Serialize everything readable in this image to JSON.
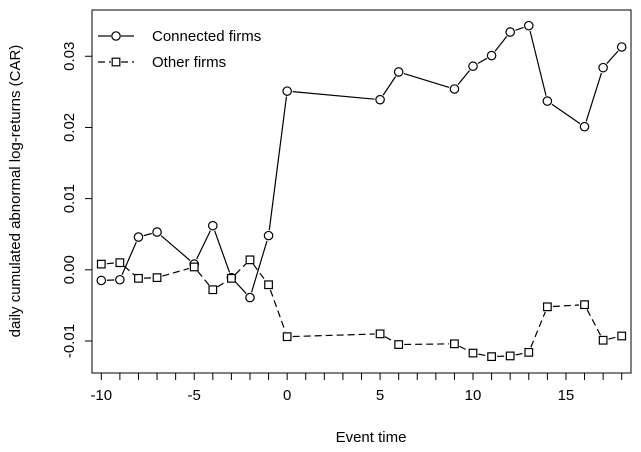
{
  "chart_data": {
    "type": "line",
    "title": "",
    "xlabel": "Event time",
    "ylabel": "daily cumulated abnormal log-returns (CAR)",
    "xlim": [
      -10.5,
      18.5
    ],
    "ylim": [
      -0.0145,
      0.0365
    ],
    "x_ticks": [
      -10,
      -9,
      -8,
      -7,
      -6,
      -5,
      -4,
      -3,
      -2,
      -1,
      0,
      1,
      2,
      3,
      4,
      5,
      6,
      7,
      8,
      9,
      10,
      11,
      12,
      13,
      14,
      15,
      16,
      17,
      18
    ],
    "x_tick_labels": [
      "-10",
      "-5",
      "0",
      "5",
      "10",
      "15"
    ],
    "y_tick_labels": [
      "-0.01",
      "0.00",
      "0.01",
      "0.02",
      "0.03"
    ],
    "grid": false,
    "legend_position": "top-left",
    "series": [
      {
        "name": "Connected firms",
        "marker": "circle",
        "line": "solid",
        "x": [
          -10,
          -9,
          -8,
          -7,
          -5,
          -4,
          -3,
          -2,
          -1,
          0,
          5,
          6,
          9,
          10,
          11,
          12,
          13,
          14,
          16,
          17,
          18
        ],
        "y": [
          -0.0015,
          -0.0014,
          0.0046,
          0.0053,
          0.0008,
          0.0062,
          -0.0011,
          -0.0039,
          0.0048,
          0.0251,
          0.0239,
          0.0278,
          0.0254,
          0.0286,
          0.0301,
          0.0334,
          0.0343,
          0.0237,
          0.0201,
          0.0284,
          0.0313
        ]
      },
      {
        "name": "Other firms",
        "marker": "square",
        "line": "dashed",
        "x": [
          -10,
          -9,
          -8,
          -7,
          -5,
          -4,
          -3,
          -2,
          -1,
          0,
          5,
          6,
          9,
          10,
          11,
          12,
          13,
          14,
          16,
          17,
          18
        ],
        "y": [
          0.0008,
          0.001,
          -0.0012,
          -0.0011,
          0.0004,
          -0.0028,
          -0.0012,
          0.0014,
          -0.0021,
          -0.0094,
          -0.009,
          -0.0105,
          -0.0104,
          -0.0117,
          -0.0122,
          -0.0121,
          -0.0116,
          -0.0052,
          -0.0049,
          -0.0099,
          -0.0093
        ]
      }
    ]
  }
}
